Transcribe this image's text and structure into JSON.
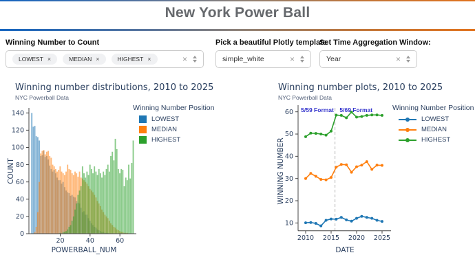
{
  "header": {
    "title": "New York Power Ball"
  },
  "icons": {
    "tag_remove": "×",
    "clear": "×",
    "dropdown": "up-down-arrows"
  },
  "controls": {
    "count_select": {
      "label": "Winning Number to Count",
      "tags": [
        {
          "label": "LOWEST"
        },
        {
          "label": "MEDIAN"
        },
        {
          "label": "HIGHEST"
        }
      ]
    },
    "template_select": {
      "label": "Pick a beautiful Plotly template",
      "value": "simple_white"
    },
    "window_select": {
      "label": "Set Time Aggregation Window:",
      "value": "Year"
    }
  },
  "colors": {
    "lowest": "#1f77b4",
    "median": "#ff7f0e",
    "highest": "#2ca02c",
    "accent_blue": "#1565c0",
    "accent_orange": "#e1731e"
  },
  "chart_data": [
    {
      "type": "bar",
      "subtype": "overlaid-histogram",
      "title": "Winning number distributions, 2010 to 2025",
      "subtitle": "NYC Powerball Data",
      "xlabel": "POWERBALL_NUM",
      "ylabel": "COUNT",
      "legend_title": "Winning Number Position",
      "legend_position": "right-top",
      "grid": false,
      "xlim": [
        -1,
        71
      ],
      "ylim": [
        0,
        145
      ],
      "xticks": [
        20,
        40,
        60
      ],
      "yticks": [
        0,
        20,
        40,
        60,
        80,
        100,
        120,
        140
      ],
      "bin_start": 1,
      "bin_width": 1,
      "opacity": 0.55,
      "series": [
        {
          "name": "LOWEST",
          "color": "#1f77b4",
          "values": [
            140,
            124,
            125,
            113,
            112,
            108,
            90,
            91,
            96,
            89,
            90,
            86,
            79,
            75,
            72,
            74,
            70,
            65,
            62,
            62,
            58,
            60,
            54,
            50,
            48,
            47,
            44,
            45,
            43,
            42,
            38,
            36,
            35,
            30,
            25,
            26,
            22,
            22,
            18,
            15,
            12,
            10,
            8,
            7,
            5,
            4,
            3,
            2,
            2,
            1,
            1,
            1,
            0,
            0,
            0,
            0,
            0,
            0,
            0,
            0,
            0,
            0,
            0,
            0,
            0,
            0,
            0,
            0,
            0
          ]
        },
        {
          "name": "MEDIAN",
          "color": "#ff7f0e",
          "values": [
            0,
            0,
            2,
            8,
            25,
            60,
            93,
            96,
            97,
            92,
            95,
            96,
            90,
            88,
            80,
            78,
            75,
            72,
            74,
            78,
            72,
            70,
            68,
            72,
            80,
            75,
            74,
            70,
            68,
            72,
            70,
            66,
            72,
            65,
            64,
            62,
            60,
            58,
            55,
            52,
            50,
            48,
            45,
            42,
            38,
            35,
            32,
            28,
            25,
            22,
            20,
            18,
            15,
            12,
            10,
            8,
            7,
            5,
            4,
            3,
            2,
            2,
            1,
            1,
            1,
            0,
            0,
            0,
            0
          ]
        },
        {
          "name": "HIGHEST",
          "color": "#2ca02c",
          "values": [
            0,
            0,
            0,
            0,
            0,
            0,
            0,
            0,
            0,
            0,
            0,
            0,
            0,
            0,
            0,
            0,
            0,
            0,
            0,
            1,
            0,
            2,
            2,
            3,
            5,
            8,
            10,
            15,
            20,
            28,
            35,
            45,
            50,
            55,
            78,
            70,
            65,
            72,
            68,
            80,
            75,
            70,
            78,
            72,
            68,
            75,
            70,
            65,
            72,
            68,
            75,
            80,
            72,
            90,
            95,
            85,
            110,
            98,
            75,
            70,
            75,
            74,
            55,
            65,
            62,
            80,
            64,
            82,
            108
          ]
        }
      ]
    },
    {
      "type": "line",
      "title": "Winning number plots, 2010 to 2025",
      "subtitle": "NYC Powerball Data",
      "xlabel": "DATE",
      "ylabel": "WINNING NUMBER",
      "legend_title": "Winning Number Position",
      "legend_position": "right-top",
      "grid": false,
      "xlim": [
        2008.6,
        2026.8
      ],
      "ylim": [
        6.5,
        63
      ],
      "xticks": [
        2010,
        2015,
        2020,
        2025
      ],
      "yticks": [
        10,
        20,
        30,
        40,
        50,
        60
      ],
      "x": [
        2010,
        2011,
        2012,
        2013,
        2014,
        2015,
        2016,
        2017,
        2018,
        2019,
        2020,
        2021,
        2022,
        2023,
        2024,
        2025
      ],
      "vline": {
        "x_year": 2015.75,
        "style": "dashed",
        "color": "#c9c9c9"
      },
      "annotations": [
        {
          "text": "5/59 Format",
          "x_year": 2012.3,
          "y": 61,
          "color": "#3333cc"
        },
        {
          "text": "5/69 Format",
          "x_year": 2019.9,
          "y": 61,
          "color": "#3333cc"
        }
      ],
      "series": [
        {
          "name": "LOWEST",
          "color": "#1f77b4",
          "values": [
            10.1,
            10.2,
            9.8,
            8.7,
            11.2,
            11.8,
            11.7,
            12.5,
            11.4,
            10.8,
            12.1,
            13.0,
            12.5,
            12.1,
            11.2,
            10.7
          ]
        },
        {
          "name": "MEDIAN",
          "color": "#ff7f0e",
          "values": [
            30.0,
            32.3,
            31.0,
            29.6,
            29.4,
            30.5,
            35.1,
            36.3,
            36.2,
            32.8,
            35.3,
            36.0,
            37.6,
            34.1,
            36.0,
            35.9
          ]
        },
        {
          "name": "HIGHEST",
          "color": "#2ca02c",
          "values": [
            48.8,
            50.4,
            50.3,
            50.0,
            49.5,
            51.3,
            58.5,
            58.4,
            57.3,
            59.9,
            57.6,
            57.9,
            58.4,
            58.6,
            58.6,
            58.4
          ]
        }
      ]
    }
  ]
}
